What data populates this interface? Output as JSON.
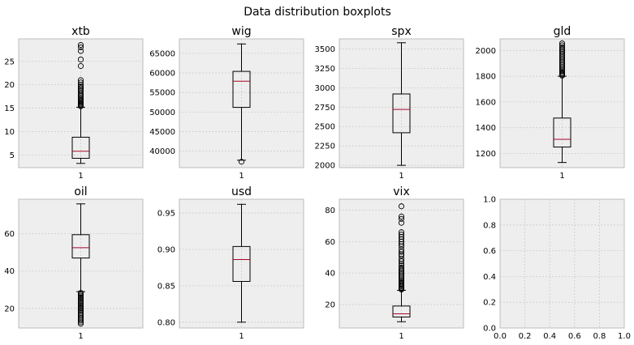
{
  "figure": {
    "title": "Data distribution boxplots"
  },
  "chart_data": [
    {
      "type": "boxplot",
      "title": "xtb",
      "xtick": "1",
      "ylim": [
        2.3,
        29.8
      ],
      "yticks": [
        5,
        10,
        15,
        20,
        25
      ],
      "box": {
        "whislo": 3.2,
        "q1": 4.3,
        "med": 5.8,
        "q3": 8.8,
        "whishi": 15.2
      },
      "fliers": [
        15.4,
        15.6,
        15.8,
        16.0,
        16.2,
        16.5,
        16.7,
        17.0,
        17.3,
        17.6,
        17.9,
        18.3,
        18.7,
        19.0,
        19.3,
        19.6,
        20.0,
        20.5,
        21.0,
        24.0,
        25.4,
        27.2,
        28.0,
        28.5
      ]
    },
    {
      "type": "boxplot",
      "title": "wig",
      "xtick": "1",
      "ylim": [
        35800,
        68700
      ],
      "yticks": [
        40000,
        45000,
        50000,
        55000,
        60000,
        65000
      ],
      "box": {
        "whislo": 37700,
        "q1": 51200,
        "med": 57900,
        "q3": 60400,
        "whishi": 67400
      },
      "fliers": [
        37300
      ]
    },
    {
      "type": "boxplot",
      "title": "spx",
      "xtick": "1",
      "ylim": [
        1970,
        3630
      ],
      "yticks": [
        2000,
        2250,
        2500,
        2750,
        3000,
        3250,
        3500
      ],
      "box": {
        "whislo": 2000,
        "q1": 2420,
        "med": 2720,
        "q3": 2920,
        "whishi": 3580
      },
      "fliers": []
    },
    {
      "type": "boxplot",
      "title": "gld",
      "xtick": "1",
      "ylim": [
        1090,
        2090
      ],
      "yticks": [
        1200,
        1400,
        1600,
        1800,
        2000
      ],
      "box": {
        "whislo": 1130,
        "q1": 1250,
        "med": 1310,
        "q3": 1475,
        "whishi": 1800
      },
      "fliers": [
        1805,
        1812,
        1820,
        1830,
        1840,
        1850,
        1862,
        1875,
        1888,
        1900,
        1912,
        1925,
        1938,
        1950,
        1962,
        1975,
        1988,
        2000,
        2012,
        2025,
        2040,
        2055
      ]
    },
    {
      "type": "boxplot",
      "title": "oil",
      "xtick": "1",
      "ylim": [
        9.5,
        78.5
      ],
      "yticks": [
        20,
        40,
        60
      ],
      "box": {
        "whislo": 29,
        "q1": 47,
        "med": 52.5,
        "q3": 59.5,
        "whishi": 76
      },
      "fliers": [
        28.3,
        27.5,
        26.8,
        26.0,
        25.3,
        24.6,
        23.8,
        23.0,
        22.2,
        21.5,
        20.7,
        20.0,
        19.2,
        18.5,
        17.6,
        16.8,
        16.0,
        15.1,
        14.3,
        13.5,
        12.6,
        11.8
      ]
    },
    {
      "type": "boxplot",
      "title": "usd",
      "xtick": "1",
      "ylim": [
        0.792,
        0.969
      ],
      "yticks": [
        0.8,
        0.85,
        0.9,
        0.95
      ],
      "box": {
        "whislo": 0.8,
        "q1": 0.856,
        "med": 0.886,
        "q3": 0.904,
        "whishi": 0.962
      },
      "fliers": []
    },
    {
      "type": "boxplot",
      "title": "vix",
      "xtick": "1",
      "ylim": [
        5,
        87
      ],
      "yticks": [
        20,
        40,
        60,
        80
      ],
      "box": {
        "whislo": 9,
        "q1": 12,
        "med": 14,
        "q3": 19,
        "whishi": 29
      },
      "fliers": [
        29.5,
        30,
        30.8,
        31.5,
        32.2,
        33,
        33.8,
        34.6,
        35.5,
        36.5,
        37.5,
        38.5,
        39.5,
        40.5,
        41.5,
        42.5,
        43.5,
        44.8,
        46,
        47.5,
        49,
        51,
        52,
        53.5,
        55,
        57,
        58.5,
        60,
        61.5,
        63,
        64.5,
        66,
        72,
        74.5,
        76,
        82.5
      ]
    },
    {
      "type": "empty",
      "title": "",
      "xlim": [
        0,
        1
      ],
      "ylim": [
        0,
        1
      ],
      "xticks": [
        0.0,
        0.2,
        0.4,
        0.6,
        0.8,
        1.0
      ],
      "yticks": [
        0.0,
        0.2,
        0.4,
        0.6,
        0.8,
        1.0
      ]
    }
  ],
  "style": {
    "axes_bg": "#eeeeee",
    "grid": "#cbcbcb",
    "frame": "#bcbcbc",
    "line": "#000000",
    "median": "#a60628"
  }
}
